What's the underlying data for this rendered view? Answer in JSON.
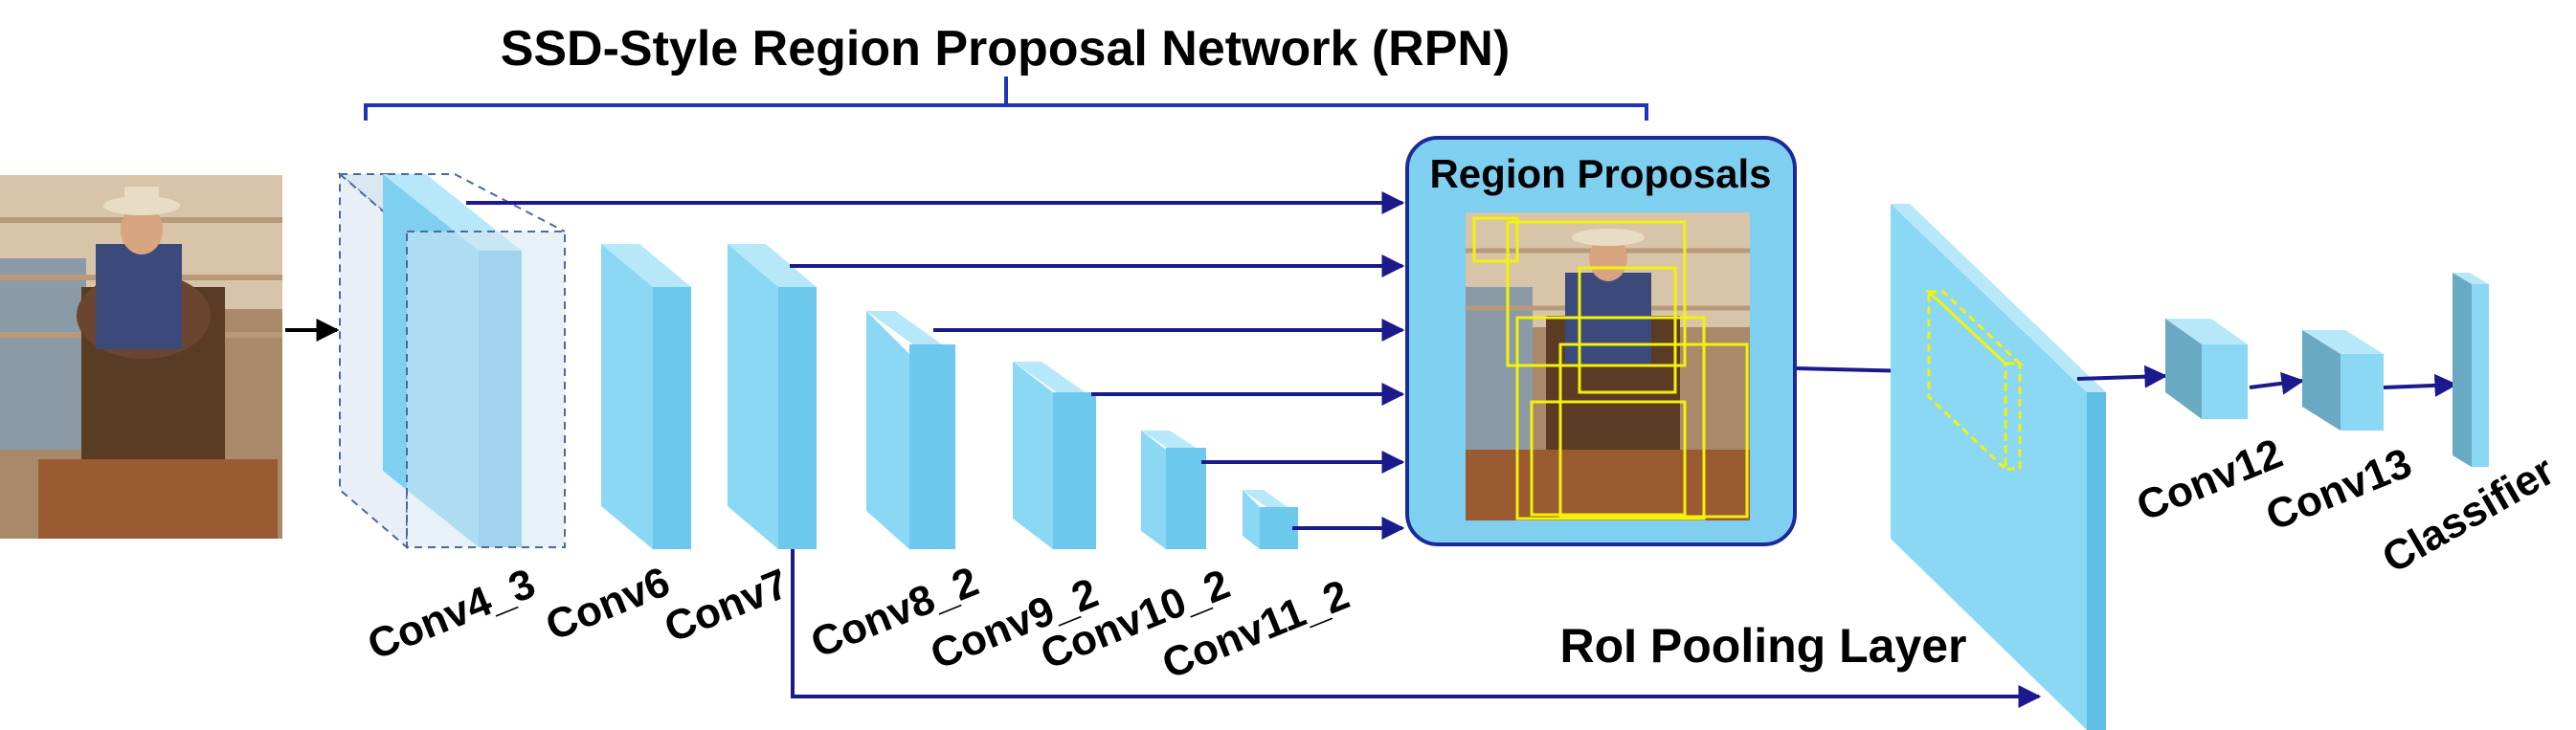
{
  "title": "SSD-Style Region Proposal Network (RPN)",
  "region_proposals_label": "Region Proposals",
  "roi_pooling_label": "RoI Pooling Layer",
  "layers": {
    "conv4_3": "Conv4_3",
    "conv6": "Conv6",
    "conv7": "Conv7",
    "conv8_2": "Conv8_2",
    "conv9_2": "Conv9_2",
    "conv10_2": "Conv10_2",
    "conv11_2": "Conv11_2",
    "conv12": "Conv12",
    "conv13": "Conv13",
    "classifier": "Classifier"
  },
  "colors": {
    "block_front": "#8ad8f4",
    "block_side": "#5fbde6",
    "block_top": "#b6e8f9",
    "arrow": "#1a1a8c",
    "bracket": "#2233bb",
    "proposal_panel": "#7fd0f0",
    "proposal_box": "#f2f20a"
  },
  "icons": {
    "input_photo": "cowboy-on-horse-photo",
    "proposal_photo": "cowboy-photo-with-boxes"
  }
}
